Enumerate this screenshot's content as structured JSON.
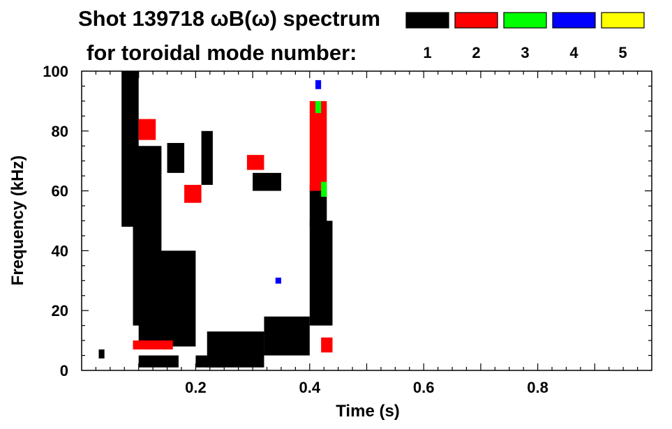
{
  "chart_data": {
    "type": "heatmap",
    "title": "Shot 139718 ωB(ω) spectrum",
    "subtitle": "for toroidal mode number:",
    "xlabel": "Time (s)",
    "ylabel": "Frequency (kHz)",
    "xlim": [
      0.0,
      1.0
    ],
    "ylim": [
      0,
      100
    ],
    "x_ticks": [
      0.2,
      0.4,
      0.6,
      0.8
    ],
    "x_tick_labels": [
      "0.2",
      "0.4",
      "0.6",
      "0.8"
    ],
    "y_ticks": [
      0,
      20,
      40,
      60,
      80,
      100
    ],
    "y_tick_labels": [
      "0",
      "20",
      "40",
      "60",
      "80",
      "100"
    ],
    "grid": false,
    "legend_position": "top-right",
    "legend": [
      {
        "label": "1",
        "color": "#000000"
      },
      {
        "label": "2",
        "color": "#ff0000"
      },
      {
        "label": "3",
        "color": "#00ff00"
      },
      {
        "label": "4",
        "color": "#0000ff"
      },
      {
        "label": "5",
        "color": "#ffff00"
      }
    ],
    "regions": [
      {
        "mode": 1,
        "t": [
          0.07,
          0.1
        ],
        "f": [
          48,
          100
        ]
      },
      {
        "mode": 1,
        "t": [
          0.09,
          0.14
        ],
        "f": [
          15,
          75
        ]
      },
      {
        "mode": 1,
        "t": [
          0.1,
          0.2
        ],
        "f": [
          8,
          40
        ]
      },
      {
        "mode": 1,
        "t": [
          0.1,
          0.17
        ],
        "f": [
          1,
          5
        ]
      },
      {
        "mode": 1,
        "t": [
          0.15,
          0.18
        ],
        "f": [
          66,
          76
        ]
      },
      {
        "mode": 1,
        "t": [
          0.21,
          0.23
        ],
        "f": [
          62,
          80
        ]
      },
      {
        "mode": 1,
        "t": [
          0.2,
          0.25
        ],
        "f": [
          1,
          5
        ]
      },
      {
        "mode": 1,
        "t": [
          0.22,
          0.32
        ],
        "f": [
          1,
          13
        ]
      },
      {
        "mode": 1,
        "t": [
          0.32,
          0.4
        ],
        "f": [
          5,
          18
        ]
      },
      {
        "mode": 1,
        "t": [
          0.3,
          0.35
        ],
        "f": [
          60,
          66
        ]
      },
      {
        "mode": 1,
        "t": [
          0.4,
          0.43
        ],
        "f": [
          48,
          62
        ]
      },
      {
        "mode": 1,
        "t": [
          0.4,
          0.44
        ],
        "f": [
          15,
          50
        ]
      },
      {
        "mode": 1,
        "t": [
          0.03,
          0.04
        ],
        "f": [
          4,
          7
        ]
      },
      {
        "mode": 2,
        "t": [
          0.4,
          0.43
        ],
        "f": [
          60,
          90
        ]
      },
      {
        "mode": 2,
        "t": [
          0.29,
          0.32
        ],
        "f": [
          67,
          72
        ]
      },
      {
        "mode": 2,
        "t": [
          0.18,
          0.21
        ],
        "f": [
          56,
          62
        ]
      },
      {
        "mode": 2,
        "t": [
          0.09,
          0.16
        ],
        "f": [
          7,
          10
        ]
      },
      {
        "mode": 2,
        "t": [
          0.42,
          0.44
        ],
        "f": [
          6,
          11
        ]
      },
      {
        "mode": 2,
        "t": [
          0.1,
          0.13
        ],
        "f": [
          77,
          84
        ]
      },
      {
        "mode": 3,
        "t": [
          0.41,
          0.42
        ],
        "f": [
          86,
          90
        ]
      },
      {
        "mode": 3,
        "t": [
          0.42,
          0.43
        ],
        "f": [
          58,
          63
        ]
      },
      {
        "mode": 4,
        "t": [
          0.41,
          0.42
        ],
        "f": [
          94,
          97
        ]
      },
      {
        "mode": 4,
        "t": [
          0.34,
          0.35
        ],
        "f": [
          29,
          31
        ]
      }
    ]
  }
}
